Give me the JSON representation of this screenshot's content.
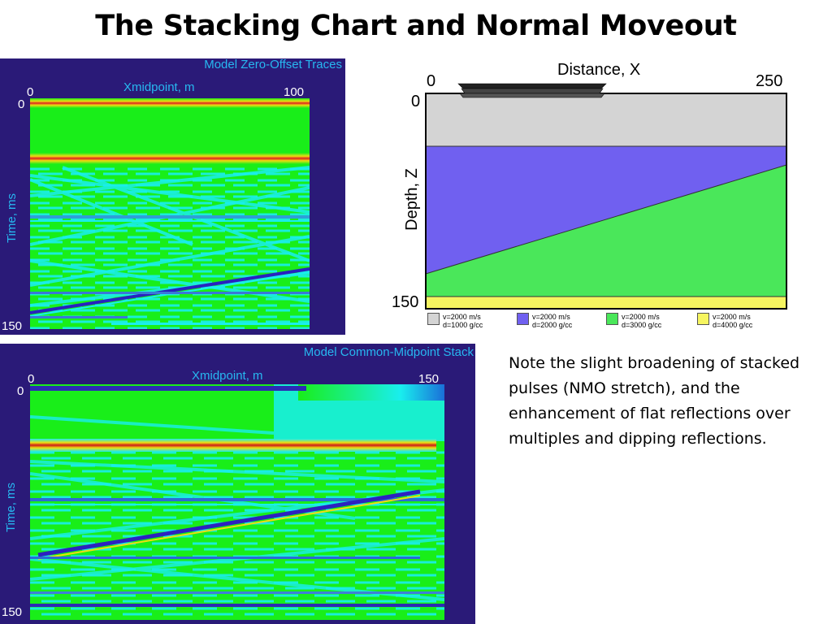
{
  "title": "The Stacking Chart and Normal Moveout",
  "zero_offset": {
    "title": "Model Zero-Offset Traces",
    "x_label": "Xmidpoint, m",
    "x_min": "0",
    "x_max": "100",
    "y_label": "Time, ms",
    "y_min": "0",
    "y_max": "150"
  },
  "cmp_stack": {
    "title": "Model Common-Midpoint Stack",
    "x_label": "Xmidpoint, m",
    "x_min": "0",
    "x_max": "150",
    "y_label": "Time, ms",
    "y_min": "0",
    "y_max": "150"
  },
  "model": {
    "x_label": "Distance, X",
    "x_min": "0",
    "x_max": "250",
    "y_label": "Depth, Z",
    "y_min": "0",
    "y_max": "150",
    "layers": [
      {
        "velocity": "v=2000 m/s",
        "density": "d=1000 g/cc",
        "color": "#d4d4d4"
      },
      {
        "velocity": "v=2000 m/s",
        "density": "d=2000 g/cc",
        "color": "#7060f0"
      },
      {
        "velocity": "v=2000 m/s",
        "density": "d=3000 g/cc",
        "color": "#4ae75a"
      },
      {
        "velocity": "v=2000 m/s",
        "density": "d=4000 g/cc",
        "color": "#f6f560"
      }
    ]
  },
  "note": "Note the slight broadening of stacked pulses (NMO stretch), and the enhancement of flat reflections over multiples and dipping reflections.",
  "colors": {
    "panel_bg": "#2a1a78",
    "field_green": "#19ee19",
    "field_cyan": "#19eeee",
    "label_blue": "#27b8f0"
  }
}
